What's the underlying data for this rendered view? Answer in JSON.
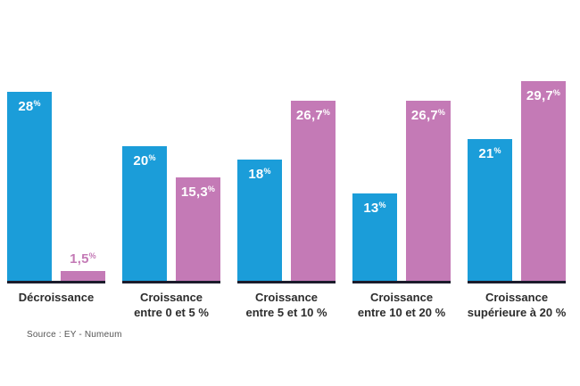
{
  "chart_data": {
    "type": "bar",
    "title": "",
    "categories": [
      "Décroissance",
      "Croissance entre 0 et 5 %",
      "Croissance entre 5 et 10 %",
      "Croissance entre 10 et 20 %",
      "Croissance supérieure à 20 %"
    ],
    "category_lines": [
      [
        "Décroissance"
      ],
      [
        "Croissance",
        "entre 0 et 5 %"
      ],
      [
        "Croissance",
        "entre 5 et 10 %"
      ],
      [
        "Croissance",
        "entre 10 et 20 %"
      ],
      [
        "Croissance",
        "supérieure à 20 %"
      ]
    ],
    "series": [
      {
        "name": "blue",
        "color": "#1b9dd9",
        "values": [
          28,
          20,
          18,
          13,
          21
        ],
        "labels": [
          "28",
          "20",
          "18",
          "13",
          "21"
        ]
      },
      {
        "name": "pink",
        "color": "#c47ab6",
        "values": [
          1.5,
          15.3,
          26.7,
          26.7,
          29.7
        ],
        "labels": [
          "1,5",
          "15,3",
          "26,7",
          "26,7",
          "29,7"
        ]
      }
    ],
    "unit": "%",
    "ylim": [
      0,
      30
    ],
    "grid": false,
    "legend": "none",
    "value_label_style": "inside top of bar, outside above bar when bar is too short",
    "baseline_color": "#1c1c2c"
  },
  "source_label": "Source : EY - Numeum",
  "colors": {
    "blue": "#1b9dd9",
    "pink": "#c47ab6",
    "baseline": "#1c1c2c",
    "category_text": "#2d2d2d",
    "source_text": "#555555",
    "background": "#ffffff"
  }
}
